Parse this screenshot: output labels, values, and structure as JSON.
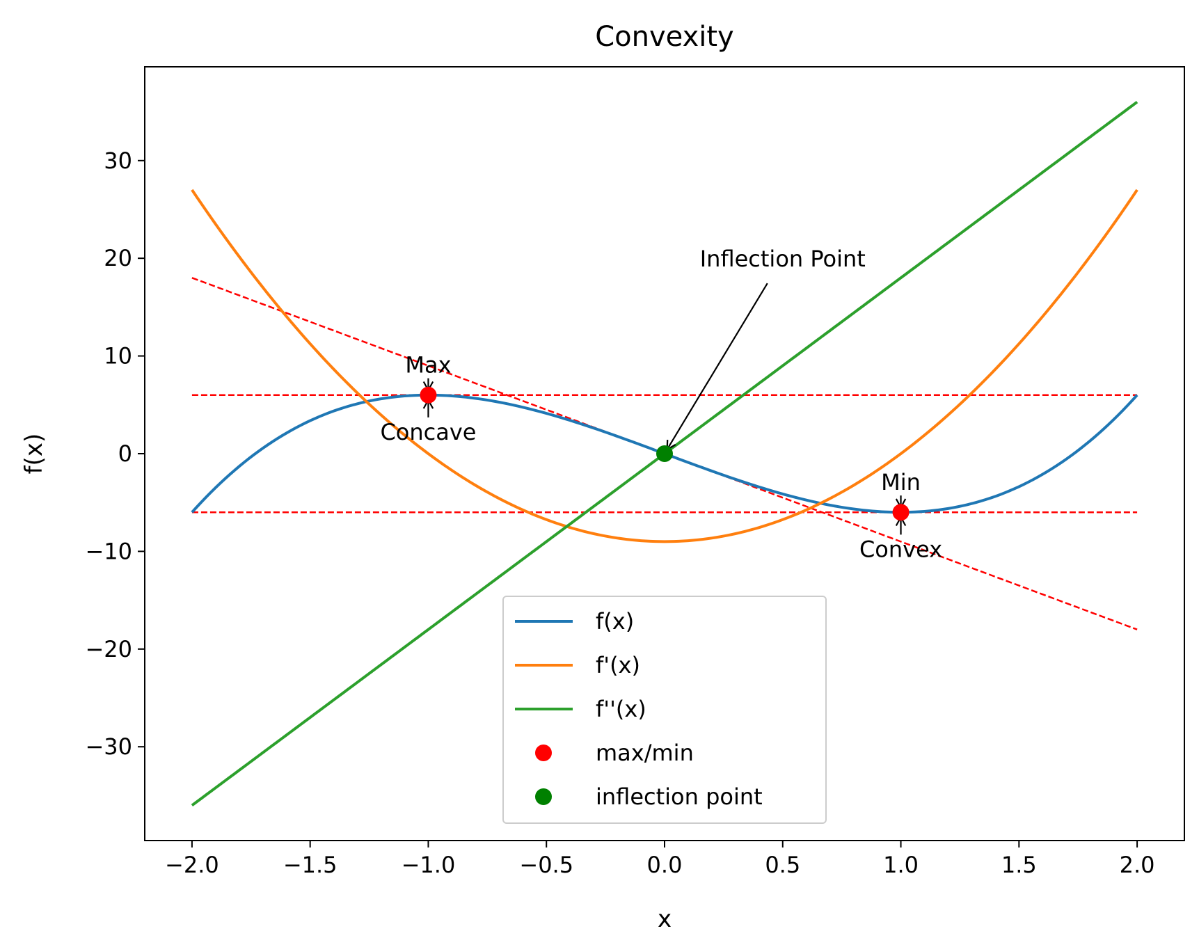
{
  "chart_data": {
    "type": "line",
    "title": "Convexity",
    "xlabel": "x",
    "ylabel": "f(x)",
    "xlim": [
      -2.2,
      2.2
    ],
    "ylim": [
      -39.6,
      39.6
    ],
    "xticks": [
      -2.0,
      -1.5,
      -1.0,
      -0.5,
      0.0,
      0.5,
      1.0,
      1.5,
      2.0
    ],
    "xtick_labels": [
      "−2.0",
      "−1.5",
      "−1.0",
      "−0.5",
      "0.0",
      "0.5",
      "1.0",
      "1.5",
      "2.0"
    ],
    "yticks": [
      -30,
      -20,
      -10,
      0,
      10,
      20,
      30
    ],
    "ytick_labels": [
      "−30",
      "−20",
      "−10",
      "0",
      "10",
      "20",
      "30"
    ],
    "grid": false,
    "legend_position": "bottom-center",
    "series": [
      {
        "name": "f(x)",
        "formula": "3x^3 - 9x",
        "color": "#1f77b4",
        "x": [
          -2.0,
          -1.5,
          -1.0,
          -0.5,
          0.0,
          0.5,
          1.0,
          1.5,
          2.0
        ],
        "y": [
          -6.0,
          3.375,
          6.0,
          4.125,
          0.0,
          -4.125,
          -6.0,
          -3.375,
          6.0
        ]
      },
      {
        "name": "f'(x)",
        "formula": "9x^2 - 9",
        "color": "#ff7f0e",
        "x": [
          -2.0,
          -1.5,
          -1.0,
          -0.5,
          0.0,
          0.5,
          1.0,
          1.5,
          2.0
        ],
        "y": [
          27.0,
          11.25,
          0.0,
          -6.75,
          -9.0,
          -6.75,
          0.0,
          11.25,
          27.0
        ]
      },
      {
        "name": "f''(x)",
        "formula": "18x",
        "color": "#2ca02c",
        "x": [
          -2.0,
          2.0
        ],
        "y": [
          -36.0,
          36.0
        ]
      }
    ],
    "reference_lines": [
      {
        "x": [
          -2.0,
          2.0
        ],
        "y": [
          6.0,
          6.0
        ],
        "color": "#ff0000",
        "style": "dashed"
      },
      {
        "x": [
          -2.0,
          2.0
        ],
        "y": [
          -6.0,
          -6.0
        ],
        "color": "#ff0000",
        "style": "dashed"
      },
      {
        "x": [
          -2.0,
          2.0
        ],
        "y": [
          18.0,
          -18.0
        ],
        "color": "#ff0000",
        "style": "dashed"
      }
    ],
    "points": [
      {
        "group": "max/min",
        "x": -1.0,
        "y": 6.0,
        "color": "#ff0000"
      },
      {
        "group": "max/min",
        "x": 1.0,
        "y": -6.0,
        "color": "#ff0000"
      },
      {
        "group": "inflection point",
        "x": 0.0,
        "y": 0.0,
        "color": "#008000"
      }
    ],
    "legend": [
      {
        "label": "f(x)",
        "kind": "line",
        "color": "#1f77b4"
      },
      {
        "label": "f'(x)",
        "kind": "line",
        "color": "#ff7f0e"
      },
      {
        "label": "f''(x)",
        "kind": "line",
        "color": "#2ca02c"
      },
      {
        "label": "max/min",
        "kind": "marker",
        "color": "#ff0000"
      },
      {
        "label": "inflection point",
        "kind": "marker",
        "color": "#008000"
      }
    ],
    "annotations": [
      {
        "text": "Max",
        "x": -1.0,
        "y": 6.0,
        "text_x": -1.0,
        "text_y": 9.0,
        "placement": "above"
      },
      {
        "text": "Concave",
        "x": -1.0,
        "y": 6.0,
        "text_x": -1.0,
        "text_y": 3.0,
        "placement": "below"
      },
      {
        "text": "Min",
        "x": 1.0,
        "y": -6.0,
        "text_x": 1.0,
        "text_y": -3.0,
        "placement": "above"
      },
      {
        "text": "Convex",
        "x": 1.0,
        "y": -6.0,
        "text_x": 1.0,
        "text_y": -9.0,
        "placement": "below"
      },
      {
        "text": "Inflection Point",
        "x": 0.0,
        "y": 0.0,
        "text_x": 0.5,
        "text_y": 20.0,
        "placement": "above-long-arrow"
      }
    ]
  }
}
